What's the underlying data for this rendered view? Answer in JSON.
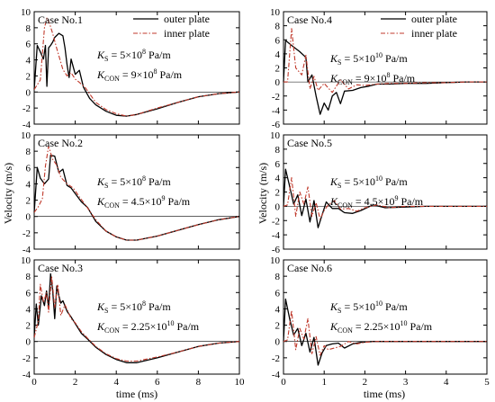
{
  "figure": {
    "ylabel": "Velocity (m/s)",
    "xlabel": "time (ms)",
    "legend": {
      "outer": "outer plate",
      "inner": "inner plate"
    }
  },
  "chart_data": [
    {
      "type": "line",
      "case": "Case No.1",
      "xlim": [
        0,
        10
      ],
      "ylim": [
        -4,
        10
      ],
      "xticks": [
        "0",
        "2",
        "4",
        "6",
        "8",
        "10"
      ],
      "yticks": [
        "-4",
        "-2",
        "0",
        "2",
        "4",
        "6",
        "8",
        "10"
      ],
      "ks": "5×10",
      "ks_exp": "8",
      "kc": "9×10",
      "kc_exp": "8",
      "series": [
        {
          "name": "outer plate",
          "x": [
            0,
            0.15,
            0.3,
            0.45,
            0.55,
            0.62,
            0.7,
            0.8,
            0.9,
            1.0,
            1.2,
            1.4,
            1.5,
            1.6,
            1.7,
            1.8,
            2.0,
            2.2,
            2.4,
            2.7,
            3.0,
            3.5,
            4.0,
            4.5,
            5.0,
            6.0,
            7.0,
            8.0,
            9.0,
            10.0
          ],
          "y": [
            0.3,
            5.8,
            5.0,
            4.1,
            5.8,
            0.7,
            5.5,
            5.8,
            6.2,
            6.8,
            7.3,
            7.0,
            5.5,
            3.4,
            1.8,
            4.1,
            2.2,
            2.7,
            0.6,
            -0.8,
            -1.6,
            -2.4,
            -2.9,
            -3.0,
            -2.8,
            -2.1,
            -1.3,
            -0.6,
            -0.2,
            0.0
          ]
        },
        {
          "name": "inner plate",
          "x": [
            0,
            0.3,
            0.5,
            0.62,
            0.75,
            0.9,
            1.1,
            1.4,
            1.6,
            1.8,
            2.0,
            2.2,
            2.5,
            3.0,
            3.5,
            4.0,
            4.5,
            5.0,
            6.0,
            7.0,
            8.0,
            9.0,
            10.0
          ],
          "y": [
            0.3,
            1.5,
            8.0,
            9.2,
            8.5,
            7.3,
            5.4,
            2.8,
            2.0,
            2.4,
            1.6,
            1.2,
            0.5,
            -1.3,
            -2.2,
            -2.7,
            -3.0,
            -2.8,
            -2.0,
            -1.3,
            -0.6,
            -0.2,
            0.0
          ]
        }
      ]
    },
    {
      "type": "line",
      "case": "Case No.2",
      "xlim": [
        0,
        10
      ],
      "ylim": [
        -4,
        10
      ],
      "xticks": [
        "0",
        "2",
        "4",
        "6",
        "8",
        "10"
      ],
      "yticks": [
        "-4",
        "-2",
        "0",
        "2",
        "4",
        "6",
        "8",
        "10"
      ],
      "ks": "5×10",
      "ks_exp": "8",
      "kc": "4.5×10",
      "kc_exp": "9",
      "series": [
        {
          "name": "outer plate",
          "x": [
            0,
            0.15,
            0.3,
            0.5,
            0.7,
            0.8,
            1.0,
            1.2,
            1.4,
            1.6,
            1.8,
            2.0,
            2.3,
            2.6,
            3.0,
            3.5,
            4.0,
            4.5,
            5.0,
            6.0,
            7.0,
            8.0,
            9.0,
            10.0
          ],
          "y": [
            0.5,
            6.0,
            4.7,
            4.0,
            4.6,
            7.5,
            7.4,
            5.4,
            5.8,
            3.8,
            3.5,
            2.8,
            1.8,
            1.1,
            -0.6,
            -1.8,
            -2.5,
            -2.9,
            -2.9,
            -2.4,
            -1.7,
            -1.0,
            -0.4,
            0.0
          ]
        },
        {
          "name": "inner plate",
          "x": [
            0,
            0.2,
            0.4,
            0.55,
            0.7,
            0.9,
            1.1,
            1.3,
            1.6,
            1.9,
            2.2,
            2.5,
            3.0,
            3.5,
            4.0,
            4.5,
            5.0,
            6.0,
            7.0,
            8.0,
            9.0,
            10.0
          ],
          "y": [
            0.5,
            1.2,
            2.2,
            6.2,
            8.6,
            7.0,
            6.3,
            4.8,
            4.0,
            3.5,
            2.4,
            1.4,
            -0.4,
            -1.8,
            -2.5,
            -2.9,
            -2.9,
            -2.4,
            -1.7,
            -1.0,
            -0.4,
            0.0
          ]
        }
      ]
    },
    {
      "type": "line",
      "case": "Case No.3",
      "xlim": [
        0,
        10
      ],
      "ylim": [
        -4,
        10
      ],
      "xticks": [
        "0",
        "2",
        "4",
        "6",
        "8",
        "10"
      ],
      "yticks": [
        "-4",
        "-2",
        "0",
        "2",
        "4",
        "6",
        "8",
        "10"
      ],
      "ks": "5×10",
      "ks_exp": "8",
      "kc": "2.25×10",
      "kc_exp": "10",
      "series": [
        {
          "name": "outer plate",
          "x": [
            0,
            0.1,
            0.2,
            0.35,
            0.5,
            0.6,
            0.7,
            0.8,
            0.9,
            1.0,
            1.1,
            1.2,
            1.3,
            1.4,
            1.6,
            1.8,
            2.0,
            2.3,
            2.6,
            3.0,
            3.5,
            4.0,
            4.5,
            5.0,
            6.0,
            7.0,
            8.0,
            9.0,
            10.0
          ],
          "y": [
            0.5,
            4.6,
            2.0,
            5.6,
            4.4,
            6.2,
            4.2,
            8.3,
            6.3,
            2.8,
            6.8,
            5.6,
            4.7,
            5.0,
            3.7,
            3.0,
            2.2,
            1.0,
            0.3,
            -0.7,
            -1.6,
            -2.2,
            -2.6,
            -2.6,
            -2.0,
            -1.3,
            -0.6,
            -0.2,
            0.0
          ]
        },
        {
          "name": "inner plate",
          "x": [
            0,
            0.2,
            0.3,
            0.45,
            0.6,
            0.7,
            0.85,
            1.0,
            1.15,
            1.3,
            1.5,
            1.8,
            2.0,
            2.3,
            2.6,
            3.0,
            3.5,
            4.0,
            4.5,
            5.0,
            6.0,
            7.0,
            8.0,
            9.0,
            10.0
          ],
          "y": [
            0.5,
            2.5,
            7.0,
            4.8,
            6.0,
            3.6,
            8.0,
            4.1,
            7.0,
            3.2,
            4.5,
            2.8,
            2.3,
            1.2,
            0.4,
            -0.6,
            -1.5,
            -2.1,
            -2.4,
            -2.4,
            -1.9,
            -1.3,
            -0.6,
            -0.2,
            0.0
          ]
        }
      ]
    },
    {
      "type": "line",
      "case": "Case No.4",
      "xlim": [
        0,
        5
      ],
      "ylim": [
        -6,
        10
      ],
      "xticks": [
        "0",
        "1",
        "2",
        "3",
        "4",
        "5"
      ],
      "yticks": [
        "-6",
        "-4",
        "-2",
        "0",
        "2",
        "4",
        "6",
        "8",
        "10"
      ],
      "ks": "5×10",
      "ks_exp": "10",
      "kc": "9×10",
      "kc_exp": "8",
      "series": [
        {
          "name": "outer plate",
          "x": [
            0,
            0.05,
            0.2,
            0.4,
            0.55,
            0.6,
            0.7,
            0.8,
            0.9,
            1.0,
            1.1,
            1.2,
            1.3,
            1.4,
            1.5,
            1.7,
            1.9,
            2.1,
            2.3,
            2.6,
            3.0,
            3.5,
            4.0,
            4.5,
            5.0
          ],
          "y": [
            0,
            5.9,
            5.2,
            4.3,
            3.5,
            0.0,
            1.0,
            -2.0,
            -4.6,
            -3.0,
            -4.0,
            -2.0,
            -1.5,
            -3.1,
            -1.3,
            -1.2,
            -0.8,
            -0.6,
            -0.3,
            -0.3,
            -0.2,
            -0.2,
            -0.1,
            0.0,
            0.0
          ]
        },
        {
          "name": "inner plate",
          "x": [
            0,
            0.1,
            0.2,
            0.3,
            0.45,
            0.55,
            0.65,
            0.75,
            0.85,
            1.0,
            1.2,
            1.4,
            1.6,
            1.8,
            2.0,
            2.3,
            2.6,
            3.0,
            3.5,
            4.0,
            4.5,
            5.0
          ],
          "y": [
            0,
            0.0,
            7.6,
            2.0,
            1.0,
            3.8,
            -1.0,
            0.8,
            -1.2,
            -0.2,
            -1.5,
            0.3,
            -1.0,
            -0.4,
            -0.5,
            -0.3,
            -0.2,
            -0.2,
            -0.1,
            -0.1,
            0.0,
            0.0
          ]
        }
      ]
    },
    {
      "type": "line",
      "case": "Case No.5",
      "xlim": [
        0,
        5
      ],
      "ylim": [
        -6,
        10
      ],
      "xticks": [
        "0",
        "1",
        "2",
        "3",
        "4",
        "5"
      ],
      "yticks": [
        "-6",
        "-4",
        "-2",
        "0",
        "2",
        "4",
        "6",
        "8",
        "10"
      ],
      "ks": "5×10",
      "ks_exp": "10",
      "kc": "4.5×10",
      "kc_exp": "9",
      "series": [
        {
          "name": "outer plate",
          "x": [
            0,
            0.05,
            0.15,
            0.25,
            0.35,
            0.45,
            0.55,
            0.65,
            0.75,
            0.85,
            0.95,
            1.05,
            1.2,
            1.35,
            1.5,
            1.7,
            1.9,
            2.2,
            2.5,
            3.0,
            3.5,
            4.0,
            4.5,
            5.0
          ],
          "y": [
            0,
            5.2,
            2.8,
            0.3,
            1.6,
            -1.3,
            1.0,
            -2.2,
            0.8,
            -3.0,
            -1.2,
            0.6,
            -0.3,
            -0.3,
            -0.9,
            -1.0,
            -0.6,
            0.2,
            -0.2,
            -0.1,
            0.0,
            0.0,
            0.0,
            0.0
          ]
        },
        {
          "name": "inner plate",
          "x": [
            0,
            0.1,
            0.2,
            0.3,
            0.4,
            0.5,
            0.6,
            0.7,
            0.8,
            0.9,
            1.0,
            1.1,
            1.25,
            1.4,
            1.6,
            1.8,
            2.0,
            2.3,
            2.6,
            3.0,
            3.5,
            4.0,
            4.5,
            5.0
          ],
          "y": [
            0,
            0.2,
            4.0,
            -1.4,
            2.0,
            0.3,
            2.7,
            -1.4,
            0.5,
            -1.8,
            -0.6,
            0.2,
            0.8,
            -0.4,
            -0.3,
            -0.7,
            -0.2,
            0.2,
            -0.2,
            0.0,
            0.0,
            0.0,
            0.0,
            0.0
          ]
        }
      ]
    },
    {
      "type": "line",
      "case": "Case No.6",
      "xlim": [
        0,
        5
      ],
      "ylim": [
        -4,
        10
      ],
      "xticks": [
        "0",
        "1",
        "2",
        "3",
        "4",
        "5"
      ],
      "yticks": [
        "-4",
        "-2",
        "0",
        "2",
        "4",
        "6",
        "8",
        "10"
      ],
      "ks": "5×10",
      "ks_exp": "10",
      "kc": "2.25×10",
      "kc_exp": "10",
      "series": [
        {
          "name": "outer plate",
          "x": [
            0,
            0.05,
            0.15,
            0.25,
            0.35,
            0.45,
            0.55,
            0.65,
            0.75,
            0.85,
            0.95,
            1.05,
            1.2,
            1.35,
            1.5,
            1.7,
            1.9,
            2.2,
            2.5,
            3.0,
            3.5,
            4.0,
            4.5,
            5.0
          ],
          "y": [
            0,
            5.2,
            2.8,
            0.8,
            1.6,
            -0.5,
            1.0,
            -1.3,
            0.5,
            -2.9,
            -1.4,
            -0.5,
            -0.3,
            -0.2,
            -0.8,
            -0.3,
            -0.1,
            0.0,
            0.0,
            0.0,
            0.0,
            0.0,
            0.0,
            0.0
          ]
        },
        {
          "name": "inner plate",
          "x": [
            0,
            0.1,
            0.2,
            0.3,
            0.4,
            0.5,
            0.6,
            0.7,
            0.8,
            0.9,
            1.0,
            1.1,
            1.25,
            1.4,
            1.6,
            1.8,
            2.0,
            2.3,
            2.6,
            3.0,
            3.5,
            4.0,
            4.5,
            5.0
          ],
          "y": [
            0,
            0.2,
            3.8,
            -1.0,
            1.6,
            0.3,
            2.8,
            -1.5,
            0.6,
            -1.7,
            -0.5,
            -1.0,
            -0.8,
            -0.6,
            0.0,
            -0.3,
            -0.1,
            0.0,
            0.0,
            0.0,
            0.0,
            0.0,
            0.0,
            0.0
          ]
        }
      ]
    }
  ]
}
